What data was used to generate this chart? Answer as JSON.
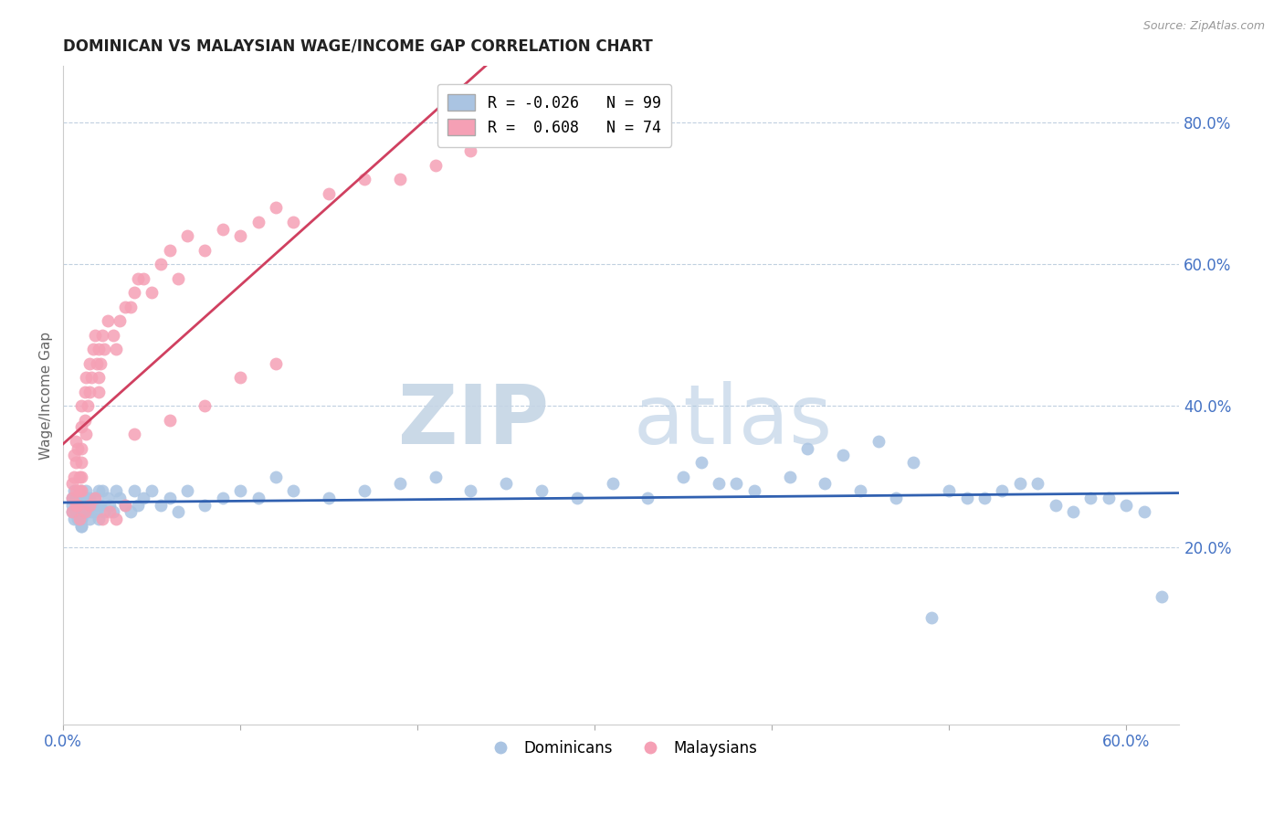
{
  "title": "DOMINICAN VS MALAYSIAN WAGE/INCOME GAP CORRELATION CHART",
  "source": "Source: ZipAtlas.com",
  "ylabel": "Wage/Income Gap",
  "xlim": [
    0.0,
    0.63
  ],
  "ylim": [
    -0.05,
    0.88
  ],
  "yticks": [
    0.2,
    0.4,
    0.6,
    0.8
  ],
  "ytick_labels": [
    "20.0%",
    "40.0%",
    "60.0%",
    "80.0%"
  ],
  "xticks": [
    0.0,
    0.1,
    0.2,
    0.3,
    0.4,
    0.5,
    0.6
  ],
  "xtick_labels": [
    "0.0%",
    "",
    "",
    "",
    "",
    "",
    "60.0%"
  ],
  "dominicans_R": -0.026,
  "dominicans_N": 99,
  "malaysians_R": 0.608,
  "malaysians_N": 74,
  "blue_color": "#aac4e2",
  "pink_color": "#f5a0b5",
  "blue_line_color": "#3060b0",
  "pink_line_color": "#d04060",
  "grid_color": "#c0d0e0",
  "dominicans_x": [
    0.005,
    0.005,
    0.005,
    0.006,
    0.006,
    0.007,
    0.007,
    0.007,
    0.008,
    0.008,
    0.008,
    0.009,
    0.009,
    0.01,
    0.01,
    0.01,
    0.01,
    0.01,
    0.01,
    0.01,
    0.01,
    0.01,
    0.01,
    0.012,
    0.012,
    0.013,
    0.013,
    0.014,
    0.015,
    0.015,
    0.015,
    0.016,
    0.017,
    0.018,
    0.019,
    0.02,
    0.02,
    0.02,
    0.021,
    0.022,
    0.023,
    0.025,
    0.026,
    0.028,
    0.03,
    0.032,
    0.035,
    0.038,
    0.04,
    0.042,
    0.045,
    0.05,
    0.055,
    0.06,
    0.065,
    0.07,
    0.08,
    0.09,
    0.1,
    0.11,
    0.12,
    0.13,
    0.15,
    0.17,
    0.19,
    0.21,
    0.23,
    0.25,
    0.27,
    0.29,
    0.31,
    0.33,
    0.35,
    0.37,
    0.39,
    0.41,
    0.43,
    0.45,
    0.47,
    0.49,
    0.51,
    0.53,
    0.55,
    0.57,
    0.59,
    0.42,
    0.44,
    0.46,
    0.48,
    0.5,
    0.52,
    0.54,
    0.56,
    0.58,
    0.6,
    0.36,
    0.38,
    0.61,
    0.62
  ],
  "dominicans_y": [
    0.26,
    0.25,
    0.27,
    0.24,
    0.28,
    0.25,
    0.26,
    0.27,
    0.25,
    0.24,
    0.26,
    0.25,
    0.27,
    0.26,
    0.25,
    0.24,
    0.27,
    0.28,
    0.23,
    0.26,
    0.25,
    0.24,
    0.23,
    0.27,
    0.25,
    0.26,
    0.28,
    0.25,
    0.27,
    0.26,
    0.24,
    0.25,
    0.26,
    0.27,
    0.25,
    0.28,
    0.26,
    0.24,
    0.26,
    0.28,
    0.25,
    0.27,
    0.26,
    0.25,
    0.28,
    0.27,
    0.26,
    0.25,
    0.28,
    0.26,
    0.27,
    0.28,
    0.26,
    0.27,
    0.25,
    0.28,
    0.26,
    0.27,
    0.28,
    0.27,
    0.3,
    0.28,
    0.27,
    0.28,
    0.29,
    0.3,
    0.28,
    0.29,
    0.28,
    0.27,
    0.29,
    0.27,
    0.3,
    0.29,
    0.28,
    0.3,
    0.29,
    0.28,
    0.27,
    0.1,
    0.27,
    0.28,
    0.29,
    0.25,
    0.27,
    0.34,
    0.33,
    0.35,
    0.32,
    0.28,
    0.27,
    0.29,
    0.26,
    0.27,
    0.26,
    0.32,
    0.29,
    0.25,
    0.13
  ],
  "malaysians_x": [
    0.005,
    0.005,
    0.006,
    0.006,
    0.007,
    0.007,
    0.007,
    0.008,
    0.008,
    0.009,
    0.009,
    0.01,
    0.01,
    0.01,
    0.01,
    0.01,
    0.01,
    0.012,
    0.012,
    0.013,
    0.013,
    0.014,
    0.015,
    0.015,
    0.016,
    0.017,
    0.018,
    0.019,
    0.02,
    0.02,
    0.02,
    0.021,
    0.022,
    0.023,
    0.025,
    0.028,
    0.03,
    0.032,
    0.035,
    0.038,
    0.04,
    0.042,
    0.045,
    0.05,
    0.055,
    0.06,
    0.065,
    0.07,
    0.08,
    0.09,
    0.1,
    0.11,
    0.12,
    0.13,
    0.15,
    0.17,
    0.19,
    0.21,
    0.23,
    0.04,
    0.06,
    0.08,
    0.1,
    0.12,
    0.005,
    0.007,
    0.009,
    0.012,
    0.015,
    0.018,
    0.022,
    0.026,
    0.03,
    0.035
  ],
  "malaysians_y": [
    0.27,
    0.29,
    0.3,
    0.33,
    0.28,
    0.35,
    0.32,
    0.26,
    0.34,
    0.3,
    0.28,
    0.4,
    0.37,
    0.34,
    0.32,
    0.3,
    0.28,
    0.38,
    0.42,
    0.36,
    0.44,
    0.4,
    0.42,
    0.46,
    0.44,
    0.48,
    0.5,
    0.46,
    0.42,
    0.48,
    0.44,
    0.46,
    0.5,
    0.48,
    0.52,
    0.5,
    0.48,
    0.52,
    0.54,
    0.54,
    0.56,
    0.58,
    0.58,
    0.56,
    0.6,
    0.62,
    0.58,
    0.64,
    0.62,
    0.65,
    0.64,
    0.66,
    0.68,
    0.66,
    0.7,
    0.72,
    0.72,
    0.74,
    0.76,
    0.36,
    0.38,
    0.4,
    0.44,
    0.46,
    0.25,
    0.26,
    0.24,
    0.25,
    0.26,
    0.27,
    0.24,
    0.25,
    0.24,
    0.26
  ]
}
